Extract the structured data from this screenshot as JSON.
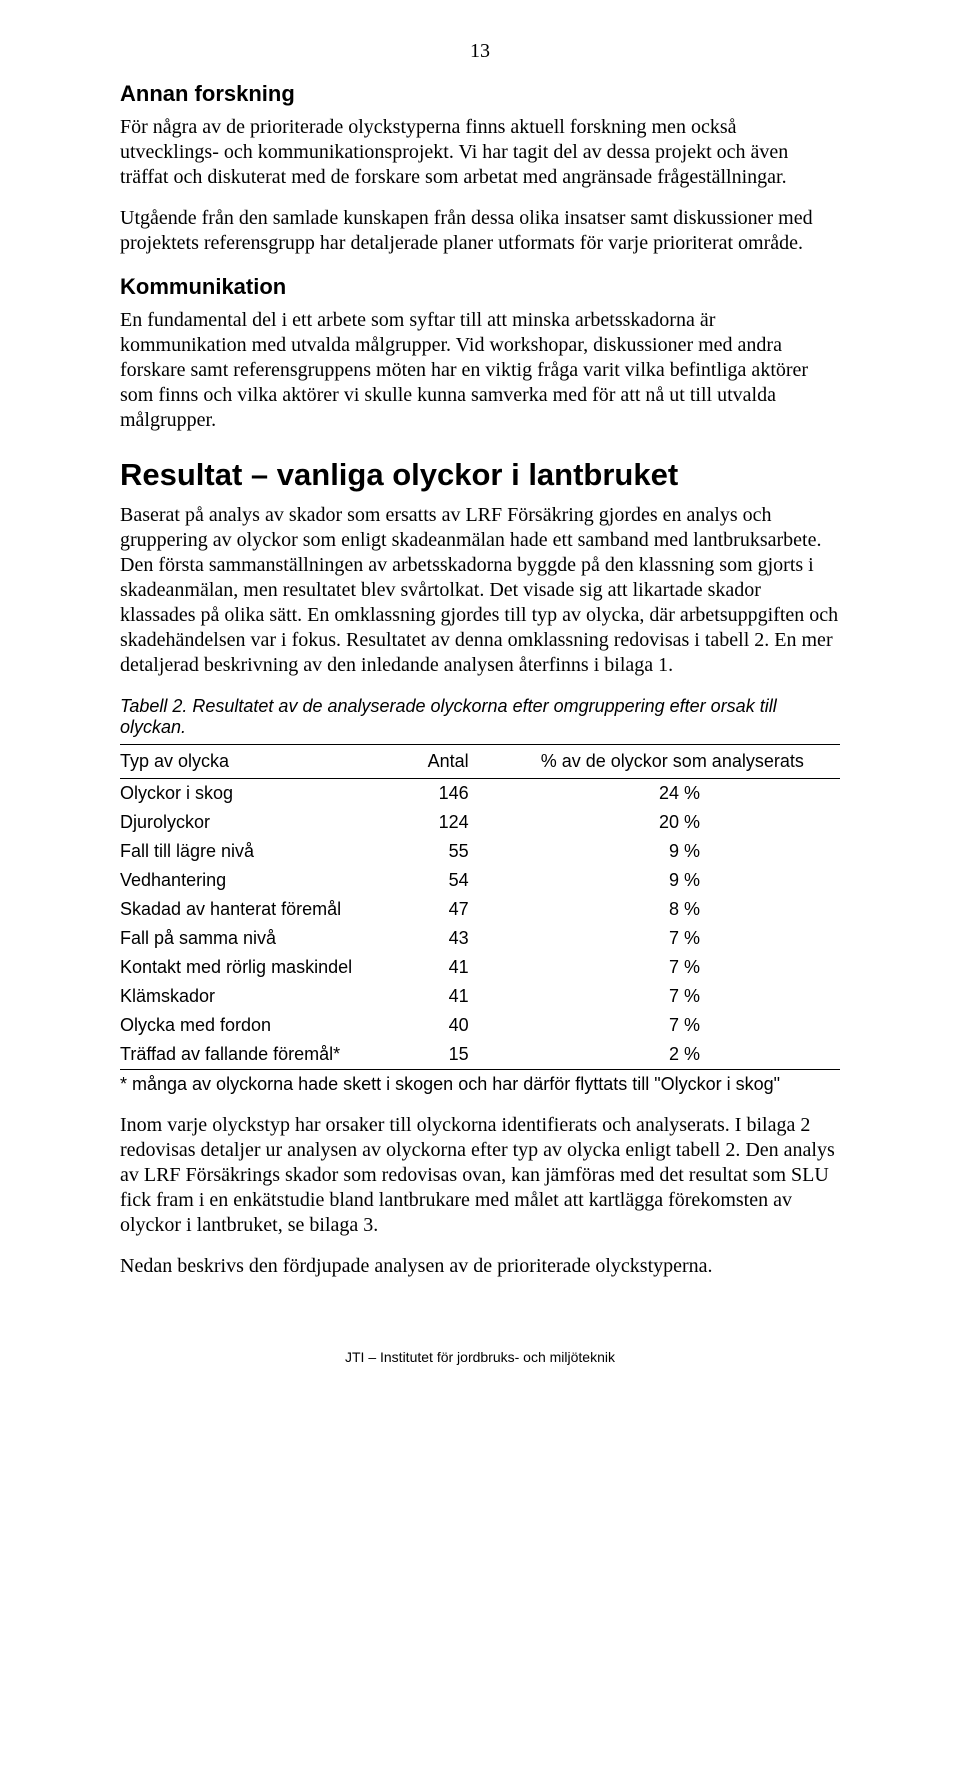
{
  "page_number": "13",
  "section1": {
    "heading": "Annan forskning",
    "para1": "För några av de prioriterade olyckstyperna finns aktuell forskning men också utvecklings- och kommunikationsprojekt. Vi har tagit del av dessa projekt och även träffat och diskuterat med de forskare som arbetat med angränsade frågeställningar.",
    "para2": "Utgående från den samlade kunskapen från dessa olika insatser samt diskussioner med projektets referensgrupp har detaljerade planer utformats för varje prioriterat område."
  },
  "section2": {
    "heading": "Kommunikation",
    "para1": "En fundamental del i ett arbete som syftar till att minska arbetsskadorna är kommunikation med utvalda målgrupper. Vid workshopar, diskussioner med andra forskare samt referensgruppens möten har en viktig fråga varit vilka befintliga aktörer som finns och vilka aktörer vi skulle kunna samverka med för att nå ut till utvalda målgrupper."
  },
  "section3": {
    "heading": "Resultat – vanliga olyckor i lantbruket",
    "para1": "Baserat på analys av skador som ersatts av LRF Försäkring gjordes en analys och gruppering av olyckor som enligt skadeanmälan hade ett samband med lantbruksarbete. Den första sammanställningen av arbetsskadorna byggde på den klassning som gjorts i skadeanmälan, men resultatet blev svårtolkat. Det visade sig att likartade skador klassades på olika sätt. En omklassning gjordes till typ av olycka, där arbetsuppgiften och skadehändelsen var i fokus. Resultatet av denna omklassning redovisas i tabell 2. En mer detaljerad beskrivning av den inledande analysen återfinns i bilaga 1."
  },
  "table": {
    "caption": "Tabell 2. Resultatet av de analyserade olyckorna efter omgruppering efter orsak till olyckan.",
    "columns": [
      "Typ av olycka",
      "Antal",
      "% av de olyckor som analyserats"
    ],
    "rows": [
      [
        "Olyckor i skog",
        "146",
        "24 %"
      ],
      [
        "Djurolyckor",
        "124",
        "20 %"
      ],
      [
        "Fall till lägre nivå",
        "55",
        "9 %"
      ],
      [
        "Vedhantering",
        "54",
        "9 %"
      ],
      [
        "Skadad av hanterat föremål",
        "47",
        "8 %"
      ],
      [
        "Fall på samma nivå",
        "43",
        "7 %"
      ],
      [
        "Kontakt med rörlig maskindel",
        "41",
        "7 %"
      ],
      [
        "Klämskador",
        "41",
        "7 %"
      ],
      [
        "Olycka med fordon",
        "40",
        "7 %"
      ],
      [
        "Träffad av fallande föremål*",
        "15",
        "2 %"
      ]
    ],
    "footnote": "* många av olyckorna hade skett i skogen och har därför flyttats till \"Olyckor i skog\""
  },
  "section4": {
    "para1": "Inom varje olyckstyp har orsaker till olyckorna identifierats och analyserats. I bilaga 2 redovisas detaljer ur analysen av olyckorna efter typ av olycka enligt tabell 2. Den analys av LRF Försäkrings skador som redovisas ovan, kan jämföras med det resultat som SLU fick fram i en enkätstudie bland lantbrukare med målet att kartlägga förekomsten av olyckor i lantbruket, se bilaga 3.",
    "para2": "Nedan beskrivs den fördjupade analysen av de prioriterade olyckstyperna."
  },
  "footer": "JTI – Institutet för jordbruks- och miljöteknik"
}
